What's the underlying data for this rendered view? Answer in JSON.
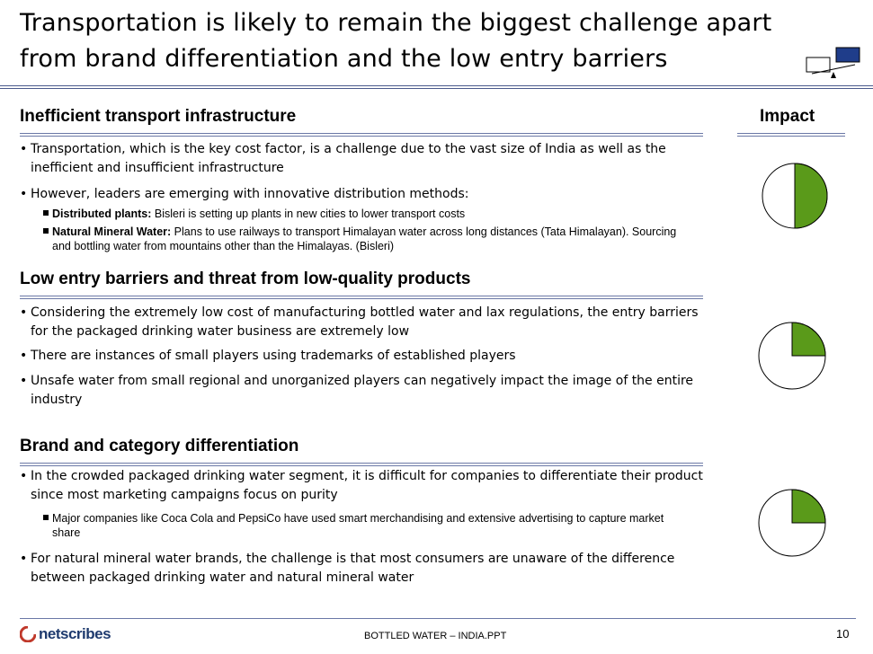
{
  "title": {
    "line1": "Transportation is likely to remain the biggest challenge apart",
    "line2": "from brand differentiation and the low entry barriers"
  },
  "impact_label": "Impact",
  "sections": [
    {
      "heading": "Inefficient transport infrastructure",
      "bullets": [
        "Transportation, which is the key cost factor, is a challenge due to the vast size of India as well as the inefficient and insufficient infrastructure",
        "However, leaders are emerging with innovative distribution methods:"
      ],
      "subs": [
        {
          "bold": "Distributed plants:",
          "text": " Bisleri is setting up plants in new cities to lower transport costs"
        },
        {
          "bold": "Natural Mineral Water:",
          "text": " Plans to use railways to transport Himalayan water across long distances  (Tata Himalayan). Sourcing and bottling water from mountains other than the Himalayas. (Bisleri)"
        }
      ],
      "impact": 0.5
    },
    {
      "heading": "Low entry barriers and threat from low-quality products",
      "bullets": [
        "Considering the extremely low cost of manufacturing bottled water and lax regulations, the entry barriers for the packaged drinking water business are extremely low",
        "There are instances of small players using trademarks of established players",
        "Unsafe water from small regional and unorganized players can negatively impact the image of the entire industry"
      ],
      "impact": 0.25
    },
    {
      "heading": "Brand and category differentiation",
      "bullets": [
        "In the crowded packaged drinking water segment, it is difficult for companies to differentiate their product since most marketing campaigns focus on purity",
        "For natural mineral water brands, the challenge is that most consumers are unaware of the difference between packaged drinking water and natural mineral water"
      ],
      "subs": [
        {
          "bold": "",
          "text": "Major companies like Coca Cola and PepsiCo have used smart merchandising and extensive advertising to capture market share"
        }
      ],
      "impact": 0.25
    }
  ],
  "bullet_char": "•",
  "footer": {
    "logo": "netscribes",
    "center": "BOTTLED WATER – INDIA.PPT",
    "page": "10"
  },
  "colors": {
    "accent": "#5a9a1a",
    "rule": "#4a5a8c",
    "logo": "#1e3a6e"
  }
}
